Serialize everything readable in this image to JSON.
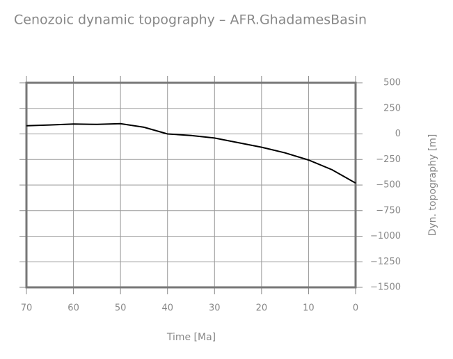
{
  "chart_data": {
    "type": "line",
    "title": "Cenozoic dynamic topography – AFR.GhadamesBasin",
    "x_label": "Time [Ma]",
    "y_label": "Dyn. topography [m]",
    "x": [
      70,
      65,
      60,
      55,
      50,
      45,
      40,
      35,
      30,
      25,
      20,
      15,
      10,
      5,
      0
    ],
    "values": [
      80,
      88,
      97,
      93,
      100,
      65,
      0,
      -15,
      -40,
      -85,
      -130,
      -185,
      -255,
      -350,
      -480
    ],
    "color": "#000000",
    "xlim": [
      70,
      0
    ],
    "xticks": [
      70,
      60,
      50,
      40,
      30,
      20,
      10,
      0
    ],
    "ylim": [
      -1500,
      500
    ],
    "yticks": [
      500,
      250,
      0,
      {
        "value": -250,
        "label": "−250"
      },
      {
        "value": -500,
        "label": "−500"
      },
      {
        "value": -750,
        "label": "−750"
      },
      {
        "value": -1000,
        "label": "−1000"
      },
      {
        "value": -1250,
        "label": "−1250"
      },
      {
        "value": -1500,
        "label": "−1500"
      }
    ],
    "grid": true
  }
}
